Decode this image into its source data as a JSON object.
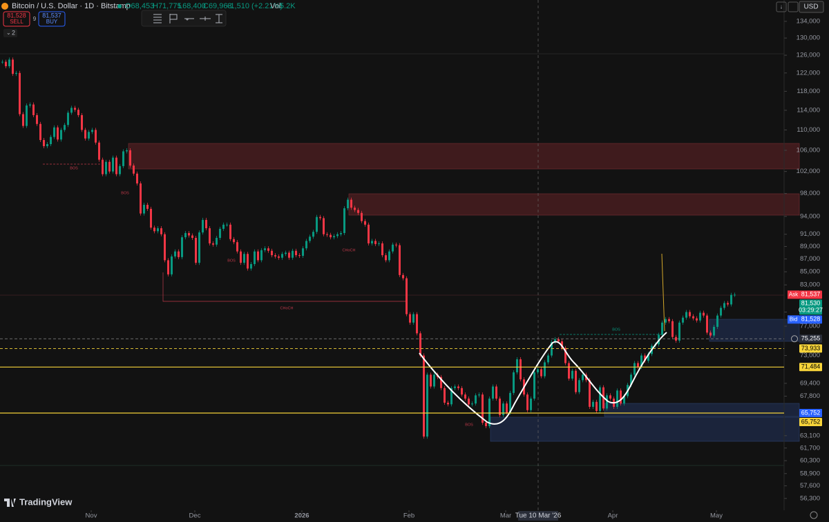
{
  "header": {
    "title": "Bitcoin / U.S. Dollar · 1D · Bitstamp",
    "ohlc": [
      "O68,453",
      "H71,775",
      "L68,400",
      "C69,963"
    ],
    "change": "+1,510 (+2.21%)",
    "volume_label": "Vol",
    "volume_value": "5.2K",
    "sell_price": "81,528",
    "sell_label": "SELL",
    "spread": "9",
    "buy_price": "81,537",
    "buy_label": "BUY",
    "indicators_count": "2",
    "currency": "USD",
    "logo": "TradingView",
    "crosshair_date": "Tue 10 Mar '26"
  },
  "chart_data": {
    "type": "candlestick",
    "log": true,
    "up_color": "#089981",
    "down_color": "#f23645",
    "closes": [
      124500,
      123500,
      125000,
      121800,
      122000,
      113200,
      110800,
      115000,
      115200,
      113000,
      111200,
      108000,
      106800,
      107200,
      108600,
      110500,
      108100,
      110000,
      111000,
      113500,
      114500,
      114100,
      113000,
      110000,
      108300,
      109600,
      110000,
      107500,
      104200,
      101500,
      103800,
      102000,
      104600,
      101500,
      103000,
      105800,
      106000,
      103100,
      101600,
      99800,
      94500,
      96000,
      95300,
      92100,
      91500,
      92000,
      91000,
      86800,
      84600,
      87400,
      88200,
      87300,
      90500,
      91200,
      90800,
      90400,
      86400,
      91300,
      93400,
      92000,
      89500,
      89300,
      90400,
      91900,
      92600,
      92600,
      90200,
      89700,
      88200,
      86400,
      87800,
      85500,
      86200,
      88200,
      86800,
      88400,
      88700,
      88300,
      87600,
      87400,
      87200,
      87800,
      88000,
      87200,
      88300,
      87600,
      87500,
      88700,
      89900,
      90600,
      91400,
      93900,
      93700,
      91000,
      90900,
      90500,
      90700,
      91000,
      91200,
      95400,
      96900,
      95500,
      95100,
      94600,
      93200,
      92600,
      89500,
      89900,
      89400,
      89500,
      87600,
      86800,
      88200,
      89300,
      89200,
      84500,
      84000,
      78700,
      77500,
      78700,
      76000,
      73000,
      63000,
      70500,
      69000,
      70500,
      70200,
      68800,
      67000,
      66800,
      68800,
      69000,
      68800,
      68000,
      67500,
      66800,
      66900,
      67900,
      68000,
      64600,
      64200,
      67500,
      69000,
      67500,
      65500,
      66900,
      65800,
      68200,
      70800,
      72500,
      69900,
      68000,
      66100,
      67500,
      70800,
      71200,
      70300,
      72100,
      73000,
      74800,
      75200,
      74900,
      74000,
      72000,
      70000,
      71000,
      68300,
      69800,
      70500,
      69800,
      66500,
      67100,
      66000,
      68900,
      66300,
      67900,
      67500,
      66500,
      68500,
      66900,
      67800,
      69200,
      70500,
      72000,
      71500,
      73000,
      72300,
      73200,
      74300,
      74500,
      75800,
      77500,
      78000,
      77700,
      75500,
      75000,
      77500,
      78200,
      79000,
      78400,
      78100,
      77800,
      78900,
      78500,
      76100,
      75700,
      76900,
      78500,
      79600,
      80300,
      80100,
      81500,
      81530
    ],
    "ylim": [
      55100,
      139300
    ],
    "yticks": [
      {
        "value": 134000,
        "label": "134,000"
      },
      {
        "value": 130000,
        "label": "130,000"
      },
      {
        "value": 126000,
        "label": "126,000"
      },
      {
        "value": 122000,
        "label": "122,000"
      },
      {
        "value": 118000,
        "label": "118,000"
      },
      {
        "value": 114000,
        "label": "114,000"
      },
      {
        "value": 110000,
        "label": "110,000"
      },
      {
        "value": 106000,
        "label": "106,000"
      },
      {
        "value": 102000,
        "label": "102,000"
      },
      {
        "value": 98000,
        "label": "98,000"
      },
      {
        "value": 94000,
        "label": "94,000"
      },
      {
        "value": 91000,
        "label": "91,000"
      },
      {
        "value": 89000,
        "label": "89,000"
      },
      {
        "value": 87000,
        "label": "87,000"
      },
      {
        "value": 85000,
        "label": "85,000"
      },
      {
        "value": 83000,
        "label": "83,000"
      },
      {
        "value": 79000,
        "label": "79,000"
      },
      {
        "value": 77000,
        "label": "77,000"
      },
      {
        "value": 73000,
        "label": "73,000"
      },
      {
        "value": 69400,
        "label": "69,400"
      },
      {
        "value": 67800,
        "label": "67,800"
      },
      {
        "value": 63100,
        "label": "63,100"
      },
      {
        "value": 61700,
        "label": "61,700"
      },
      {
        "value": 60300,
        "label": "60,300"
      },
      {
        "value": 58900,
        "label": "58,900"
      },
      {
        "value": 57600,
        "label": "57,600"
      },
      {
        "value": 56300,
        "label": "56,300"
      }
    ],
    "xticks": [
      {
        "value": 26,
        "label": "Nov"
      },
      {
        "value": 56,
        "label": "Dec"
      },
      {
        "value": 87,
        "label": "2026"
      },
      {
        "value": 118,
        "label": "Feb"
      },
      {
        "value": 146,
        "label": "Mar"
      },
      {
        "value": 177,
        "label": "Apr"
      },
      {
        "value": 207,
        "label": "May"
      }
    ],
    "price_labels": [
      {
        "tag": "Ask",
        "value": 81537,
        "label": "81,537",
        "color": "#f23645"
      },
      {
        "value": 81530,
        "label": "81,530",
        "sub": "03:29:27",
        "color": "#089981"
      },
      {
        "tag": "Bid",
        "value": 81528,
        "label": "81,528",
        "color": "#2962ff"
      },
      {
        "value": 75255,
        "label": "75,255",
        "color": "#2a2e39",
        "line": "dashed"
      },
      {
        "value": 73933,
        "label": "73,933",
        "color": "#f7d43a",
        "line": "dashed"
      },
      {
        "value": 71484,
        "label": "71,484",
        "color": "#f7d43a",
        "line": "solid"
      },
      {
        "value": 65752,
        "label": "65,752",
        "color": "#2962ff"
      },
      {
        "value": 65752,
        "label": "65,752",
        "color": "#f7d43a",
        "line": "solid"
      }
    ],
    "annotations": [
      "CHoCH",
      "BOS",
      "BOS",
      "BOS",
      "CHoCH",
      "BOS",
      "BOS"
    ]
  }
}
